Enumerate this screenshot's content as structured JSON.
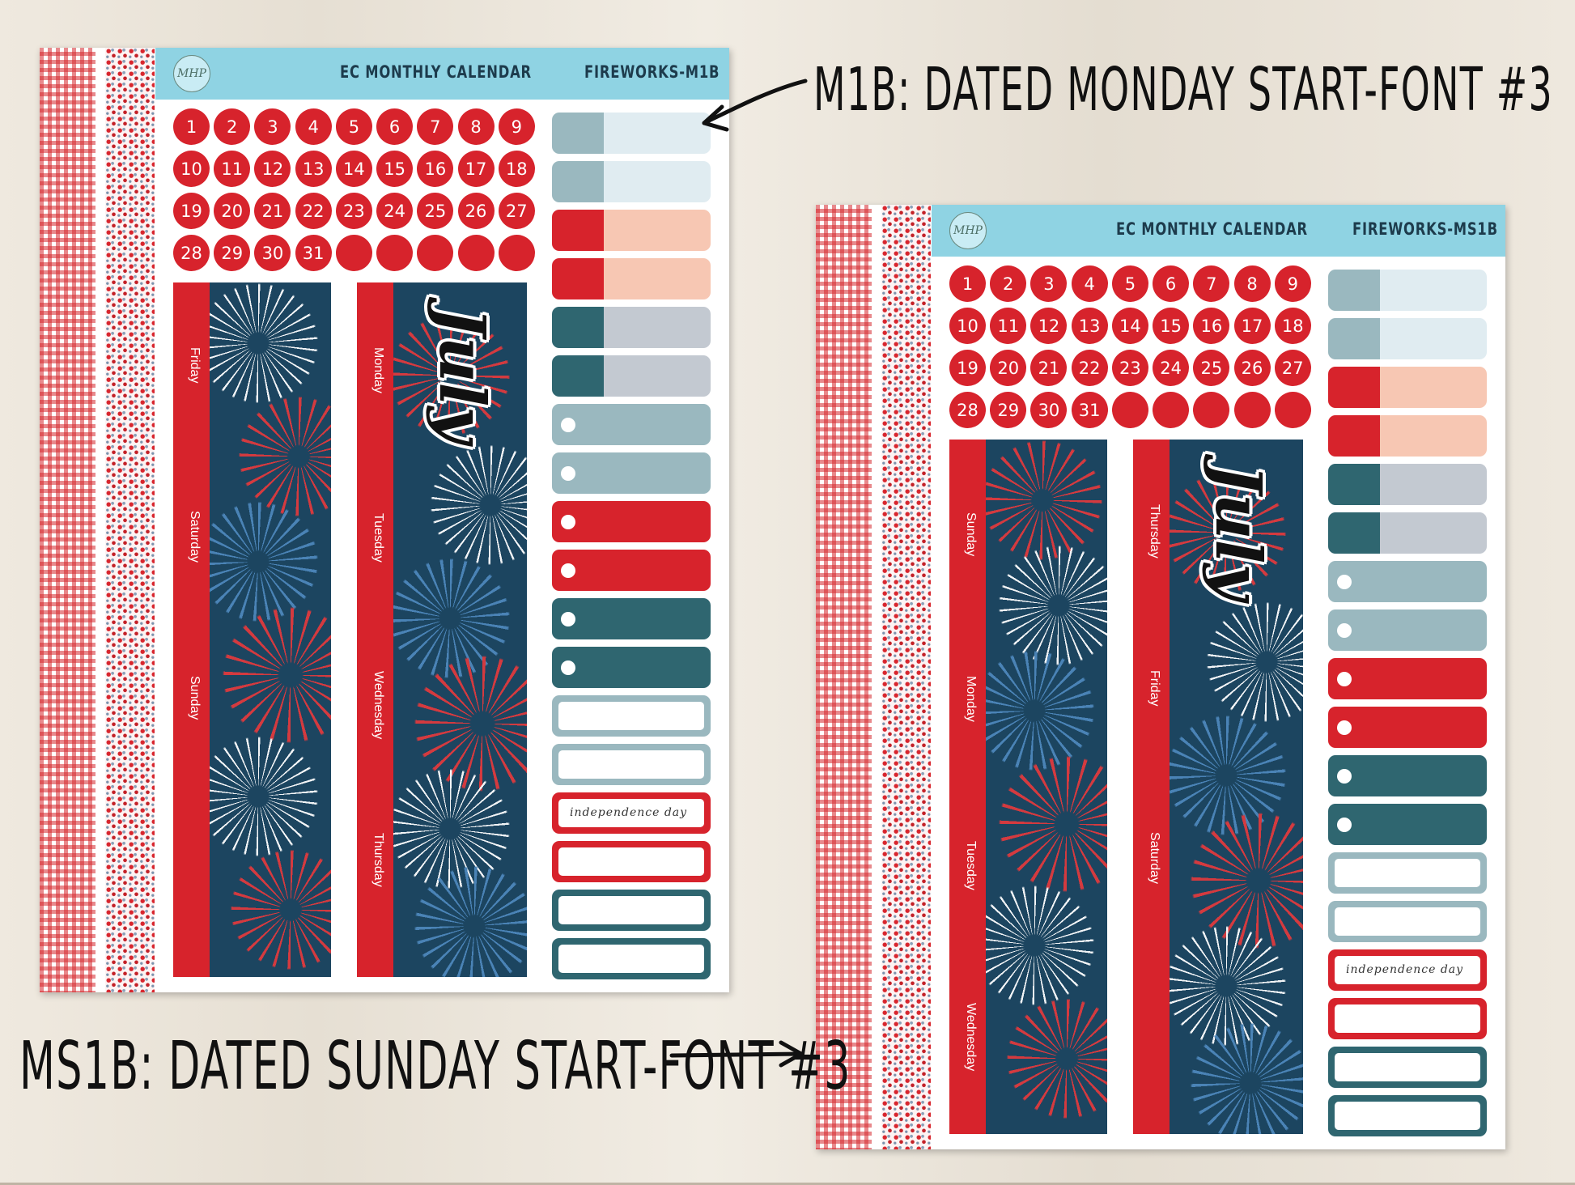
{
  "annotations": {
    "top": "M1B: DATED MONDAY START-FONT #3",
    "bottom": "MS1B: DATED SUNDAY START-FONT #3"
  },
  "colors": {
    "red": "#d7232c",
    "navy": "#1c4560",
    "sky_header": "#8fd3e3",
    "slate": "#9ab8bf",
    "teal": "#2f6670",
    "peach": "#f7c7b3",
    "gray": "#c3c9d1"
  },
  "sheet_left": {
    "logo": "MHP",
    "header_title": "EC MONTHLY CALENDAR",
    "product_code": "FIREWORKS-M1B",
    "dates": [
      "1",
      "2",
      "3",
      "4",
      "5",
      "6",
      "7",
      "8",
      "9",
      "10",
      "11",
      "12",
      "13",
      "14",
      "15",
      "16",
      "17",
      "18",
      "19",
      "20",
      "21",
      "22",
      "23",
      "24",
      "25",
      "26",
      "27",
      "28",
      "29",
      "30",
      "31",
      "",
      "",
      "",
      "",
      ""
    ],
    "strip1_days": [
      "Friday",
      "Saturday",
      "Sunday"
    ],
    "strip2_days": [
      "Monday",
      "Tuesday",
      "Wednesday",
      "Thursday"
    ],
    "month": "July",
    "label_text": "independence day"
  },
  "sheet_right": {
    "logo": "MHP",
    "header_title": "EC MONTHLY CALENDAR",
    "product_code": "FIREWORKS-MS1B",
    "dates": [
      "1",
      "2",
      "3",
      "4",
      "5",
      "6",
      "7",
      "8",
      "9",
      "10",
      "11",
      "12",
      "13",
      "14",
      "15",
      "16",
      "17",
      "18",
      "19",
      "20",
      "21",
      "22",
      "23",
      "24",
      "25",
      "26",
      "27",
      "28",
      "29",
      "30",
      "31",
      "",
      "",
      "",
      "",
      ""
    ],
    "strip1_days": [
      "Sunday",
      "Monday",
      "Tuesday",
      "Wednesday"
    ],
    "strip2_days": [
      "Thursday",
      "Friday",
      "Saturday"
    ],
    "month": "July",
    "label_text": "independence day"
  }
}
